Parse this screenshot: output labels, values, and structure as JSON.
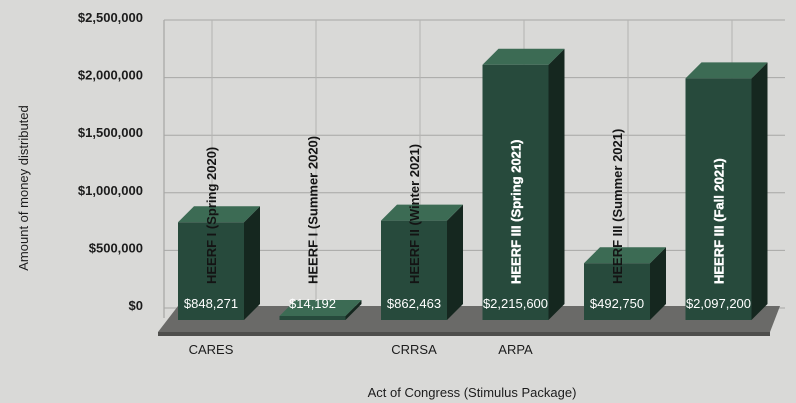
{
  "chart_data": {
    "type": "bar",
    "title": "",
    "ylabel": "Amount of money distributed",
    "xlabel": "Act of Congress (Stimulus Package)",
    "ylim": [
      0,
      2500000
    ],
    "yticks": [
      0,
      500000,
      1000000,
      1500000,
      2000000,
      2500000
    ],
    "ytick_labels": [
      "$0",
      "$500,000",
      "$1,000,000",
      "$1,500,000",
      "$2,000,000",
      "$2,500,000"
    ],
    "grid": true,
    "style": "3d",
    "colors": {
      "bar_front": "#274a3c",
      "bar_top": "#3c6b54",
      "bar_side": "#15271f",
      "floor": "#6a6a68"
    },
    "categories": [
      "CARES",
      "",
      "CRRSA",
      "ARPA",
      "",
      ""
    ],
    "bar_labels": [
      "HEERF I (Spring 2020)",
      "HEERF I (Summer 2020)",
      "HEERF II (Winter 2021)",
      "HEERF III (Spring 2021)",
      "HEERF III (Summer 2021)",
      "HEERF III (Fall 2021)"
    ],
    "values": [
      848271,
      14192,
      862463,
      2215600,
      492750,
      2097200
    ],
    "data_labels": [
      "$848,271",
      "$14,192",
      "$862,463",
      "$2,215,600",
      "$492,750",
      "$2,097,200"
    ]
  }
}
